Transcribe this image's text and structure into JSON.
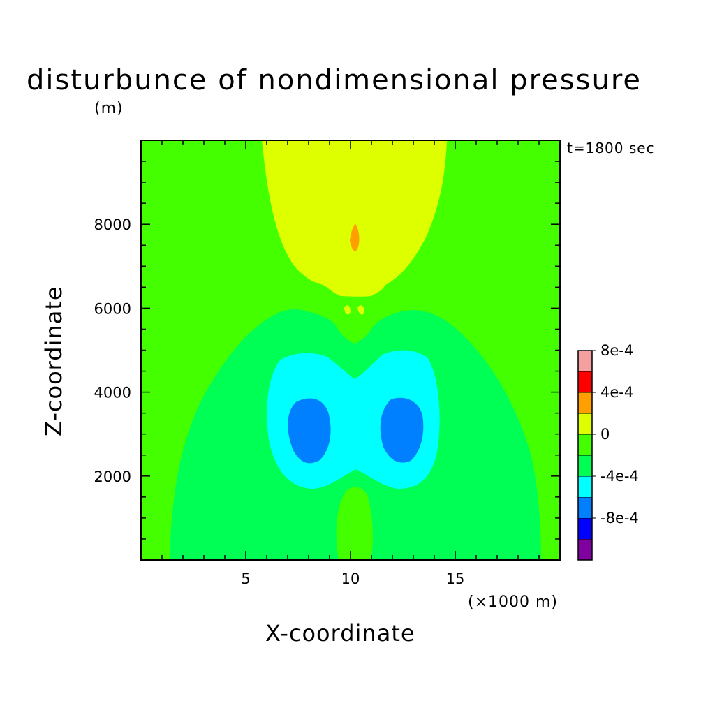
{
  "chart_data": {
    "type": "heatmap",
    "title": "disturbunce of nondimensional pressure",
    "unit": "(m)",
    "time_label": "t=1800 sec",
    "xlabel": "X-coordinate",
    "x_unit": "(×1000 m)",
    "ylabel": "Z-coordinate",
    "xlim": [
      0,
      20
    ],
    "ylim": [
      0,
      10000
    ],
    "x_ticks": [
      {
        "value": 5,
        "label": "5"
      },
      {
        "value": 10,
        "label": "10"
      },
      {
        "value": 15,
        "label": "15"
      }
    ],
    "y_ticks": [
      {
        "value": 2000,
        "label": "2000"
      },
      {
        "value": 4000,
        "label": "4000"
      },
      {
        "value": 6000,
        "label": "6000"
      },
      {
        "value": 8000,
        "label": "8000"
      }
    ],
    "colorbar": {
      "levels": [
        {
          "color": "#8000a0"
        },
        {
          "color": "#0000ff",
          "label": "-8e-4"
        },
        {
          "color": "#0080ff"
        },
        {
          "color": "#00ffff",
          "label": "-4e-4"
        },
        {
          "color": "#00ff55"
        },
        {
          "color": "#44ff00",
          "label": "0"
        },
        {
          "color": "#ddff00"
        },
        {
          "color": "#ffa000",
          "label": "4e-4"
        },
        {
          "color": "#ff0000"
        },
        {
          "color": "#f4a0a0",
          "label": "8e-4"
        }
      ]
    },
    "colors": {
      "background_positive_small": "#44ff00",
      "negative_small": "#00ff55",
      "negative_medium": "#00ffff",
      "negative_large": "#0080ff",
      "positive_medium": "#ddff00",
      "positive_large": "#ffa000"
    }
  }
}
